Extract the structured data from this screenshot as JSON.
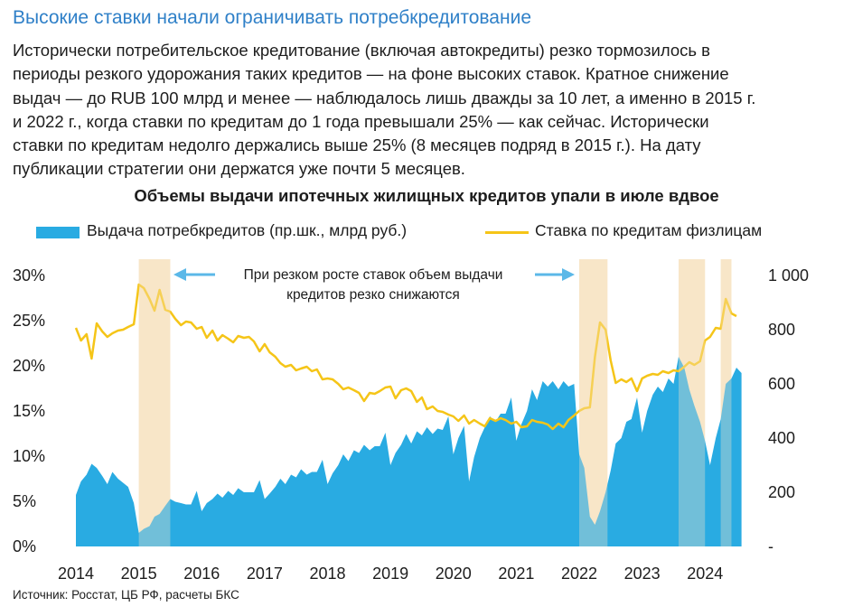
{
  "header": {
    "title": "Высокие ставки начали ограничивать потребкредитование",
    "paragraph_lines": [
      "Исторически потребительское кредитование (включая автокредиты) резко тормозилось в",
      "периоды резкого удорожания таких кредитов — на фоне высоких ставок. Кратное снижение",
      "выдач — до RUB 100 млрд и менее — наблюдалось лишь дважды за 10 лет, а именно в 2015 г.",
      "и 2022 г., когда ставки по кредитам до 1 года превышали 25% — как сейчас. Исторически",
      "ставки по кредитам недолго держались выше 25% (8 месяцев подряд в 2015 г.). На дату",
      "публикации стратегии они держатся уже почти 5 месяцев."
    ]
  },
  "chart_data": {
    "type": "area+line",
    "title": "Объемы выдачи ипотечных жилищных кредитов упали в июле вдвое",
    "legend": {
      "area_label": "Выдача потребкредитов (пр.шк., млрд руб.)",
      "line_label": "Ставка по кредитам физлицам",
      "placement": "top"
    },
    "annotation": {
      "line1": "При резком росте ставок объем выдачи",
      "line2": "кредитов резко снижаются"
    },
    "left_axis": {
      "ticks": [
        "30%",
        "25%",
        "20%",
        "15%",
        "10%",
        "5%",
        "0%"
      ],
      "range": [
        0,
        30
      ]
    },
    "right_axis": {
      "ticks": [
        "1 000",
        "800",
        "600",
        "400",
        "200",
        "-"
      ],
      "range": [
        0,
        1000
      ]
    },
    "x_axis": {
      "ticks": [
        "2014",
        "2015",
        "2016",
        "2017",
        "2018",
        "2019",
        "2020",
        "2021",
        "2022",
        "2023",
        "2024"
      ],
      "start": 2014.0,
      "end": 2024.6
    },
    "highlight_periods": [
      [
        2015.0,
        2015.5
      ],
      [
        2022.0,
        2022.45
      ],
      [
        2023.58,
        2024.0
      ],
      [
        2024.25,
        2024.42
      ]
    ],
    "colors": {
      "area": "#29ABE2",
      "line": "#F5C518",
      "highlight": "#F8E6C8",
      "arrow": "#5BB8E8"
    },
    "series": [
      {
        "name": "Выдача потребкредитов (пр.шк., млрд руб.)",
        "axis": "right",
        "points": [
          [
            2014.0,
            190
          ],
          [
            2014.08,
            240
          ],
          [
            2014.17,
            265
          ],
          [
            2014.25,
            305
          ],
          [
            2014.33,
            290
          ],
          [
            2014.42,
            260
          ],
          [
            2014.5,
            230
          ],
          [
            2014.58,
            275
          ],
          [
            2014.67,
            250
          ],
          [
            2014.75,
            235
          ],
          [
            2014.83,
            220
          ],
          [
            2014.92,
            160
          ],
          [
            2015.0,
            50
          ],
          [
            2015.08,
            65
          ],
          [
            2015.17,
            75
          ],
          [
            2015.25,
            110
          ],
          [
            2015.33,
            120
          ],
          [
            2015.42,
            150
          ],
          [
            2015.5,
            175
          ],
          [
            2015.58,
            165
          ],
          [
            2015.67,
            160
          ],
          [
            2015.75,
            155
          ],
          [
            2015.83,
            155
          ],
          [
            2015.92,
            205
          ],
          [
            2016.0,
            130
          ],
          [
            2016.08,
            160
          ],
          [
            2016.17,
            175
          ],
          [
            2016.25,
            195
          ],
          [
            2016.33,
            180
          ],
          [
            2016.42,
            205
          ],
          [
            2016.5,
            190
          ],
          [
            2016.58,
            215
          ],
          [
            2016.67,
            200
          ],
          [
            2016.75,
            200
          ],
          [
            2016.83,
            200
          ],
          [
            2016.92,
            245
          ],
          [
            2017.0,
            175
          ],
          [
            2017.08,
            195
          ],
          [
            2017.17,
            220
          ],
          [
            2017.25,
            250
          ],
          [
            2017.33,
            230
          ],
          [
            2017.42,
            265
          ],
          [
            2017.5,
            255
          ],
          [
            2017.58,
            285
          ],
          [
            2017.67,
            265
          ],
          [
            2017.75,
            275
          ],
          [
            2017.83,
            275
          ],
          [
            2017.92,
            320
          ],
          [
            2018.0,
            230
          ],
          [
            2018.08,
            270
          ],
          [
            2018.17,
            300
          ],
          [
            2018.25,
            340
          ],
          [
            2018.33,
            315
          ],
          [
            2018.42,
            355
          ],
          [
            2018.5,
            345
          ],
          [
            2018.58,
            375
          ],
          [
            2018.67,
            355
          ],
          [
            2018.75,
            370
          ],
          [
            2018.83,
            370
          ],
          [
            2018.92,
            420
          ],
          [
            2019.0,
            300
          ],
          [
            2019.08,
            345
          ],
          [
            2019.17,
            375
          ],
          [
            2019.25,
            415
          ],
          [
            2019.33,
            380
          ],
          [
            2019.42,
            425
          ],
          [
            2019.5,
            410
          ],
          [
            2019.58,
            440
          ],
          [
            2019.67,
            415
          ],
          [
            2019.75,
            435
          ],
          [
            2019.83,
            430
          ],
          [
            2019.92,
            480
          ],
          [
            2020.0,
            340
          ],
          [
            2020.08,
            400
          ],
          [
            2020.17,
            445
          ],
          [
            2020.25,
            240
          ],
          [
            2020.33,
            330
          ],
          [
            2020.42,
            400
          ],
          [
            2020.5,
            440
          ],
          [
            2020.58,
            480
          ],
          [
            2020.67,
            460
          ],
          [
            2020.75,
            490
          ],
          [
            2020.83,
            490
          ],
          [
            2020.92,
            550
          ],
          [
            2021.0,
            390
          ],
          [
            2021.08,
            450
          ],
          [
            2021.17,
            500
          ],
          [
            2021.25,
            580
          ],
          [
            2021.33,
            540
          ],
          [
            2021.42,
            610
          ],
          [
            2021.5,
            590
          ],
          [
            2021.58,
            610
          ],
          [
            2021.67,
            580
          ],
          [
            2021.75,
            610
          ],
          [
            2021.83,
            590
          ],
          [
            2021.92,
            600
          ],
          [
            2022.0,
            340
          ],
          [
            2022.08,
            290
          ],
          [
            2022.17,
            110
          ],
          [
            2022.25,
            80
          ],
          [
            2022.33,
            130
          ],
          [
            2022.42,
            200
          ],
          [
            2022.5,
            280
          ],
          [
            2022.58,
            380
          ],
          [
            2022.67,
            400
          ],
          [
            2022.75,
            460
          ],
          [
            2022.83,
            470
          ],
          [
            2022.92,
            550
          ],
          [
            2023.0,
            420
          ],
          [
            2023.08,
            500
          ],
          [
            2023.17,
            560
          ],
          [
            2023.25,
            590
          ],
          [
            2023.33,
            570
          ],
          [
            2023.42,
            620
          ],
          [
            2023.5,
            600
          ],
          [
            2023.58,
            700
          ],
          [
            2023.67,
            660
          ],
          [
            2023.75,
            580
          ],
          [
            2023.83,
            520
          ],
          [
            2023.92,
            460
          ],
          [
            2024.0,
            390
          ],
          [
            2024.08,
            300
          ],
          [
            2024.17,
            400
          ],
          [
            2024.25,
            470
          ],
          [
            2024.33,
            600
          ],
          [
            2024.42,
            620
          ],
          [
            2024.5,
            660
          ],
          [
            2024.58,
            640
          ]
        ]
      },
      {
        "name": "Ставка по кредитам физлицам",
        "axis": "left",
        "points": [
          [
            2014.0,
            24.2
          ],
          [
            2014.08,
            22.8
          ],
          [
            2014.17,
            23.5
          ],
          [
            2014.25,
            20.8
          ],
          [
            2014.33,
            24.7
          ],
          [
            2014.42,
            23.8
          ],
          [
            2014.5,
            23.2
          ],
          [
            2014.58,
            23.6
          ],
          [
            2014.67,
            23.9
          ],
          [
            2014.75,
            24.0
          ],
          [
            2014.83,
            24.3
          ],
          [
            2014.92,
            24.6
          ],
          [
            2015.0,
            29.0
          ],
          [
            2015.08,
            28.6
          ],
          [
            2015.17,
            27.4
          ],
          [
            2015.25,
            26.1
          ],
          [
            2015.33,
            28.4
          ],
          [
            2015.42,
            26.2
          ],
          [
            2015.5,
            26.0
          ],
          [
            2015.58,
            25.2
          ],
          [
            2015.67,
            24.5
          ],
          [
            2015.75,
            24.9
          ],
          [
            2015.83,
            24.8
          ],
          [
            2015.92,
            24.1
          ],
          [
            2016.0,
            24.3
          ],
          [
            2016.08,
            23.1
          ],
          [
            2016.17,
            23.9
          ],
          [
            2016.25,
            22.8
          ],
          [
            2016.33,
            23.4
          ],
          [
            2016.42,
            23.0
          ],
          [
            2016.5,
            22.6
          ],
          [
            2016.58,
            23.3
          ],
          [
            2016.67,
            23.1
          ],
          [
            2016.75,
            23.2
          ],
          [
            2016.83,
            22.7
          ],
          [
            2016.92,
            21.6
          ],
          [
            2017.0,
            22.4
          ],
          [
            2017.08,
            21.5
          ],
          [
            2017.17,
            21.0
          ],
          [
            2017.25,
            20.3
          ],
          [
            2017.33,
            19.9
          ],
          [
            2017.42,
            20.1
          ],
          [
            2017.5,
            19.5
          ],
          [
            2017.58,
            19.7
          ],
          [
            2017.67,
            19.9
          ],
          [
            2017.75,
            19.4
          ],
          [
            2017.83,
            19.6
          ],
          [
            2017.92,
            18.5
          ],
          [
            2018.0,
            18.6
          ],
          [
            2018.08,
            18.5
          ],
          [
            2018.17,
            18.0
          ],
          [
            2018.25,
            17.4
          ],
          [
            2018.33,
            17.6
          ],
          [
            2018.42,
            17.3
          ],
          [
            2018.5,
            17.0
          ],
          [
            2018.58,
            16.1
          ],
          [
            2018.67,
            17.0
          ],
          [
            2018.75,
            16.9
          ],
          [
            2018.83,
            17.2
          ],
          [
            2018.92,
            17.6
          ],
          [
            2019.0,
            17.7
          ],
          [
            2019.08,
            16.4
          ],
          [
            2019.17,
            17.3
          ],
          [
            2019.25,
            17.5
          ],
          [
            2019.33,
            17.2
          ],
          [
            2019.42,
            16.0
          ],
          [
            2019.5,
            16.5
          ],
          [
            2019.58,
            15.2
          ],
          [
            2019.67,
            15.5
          ],
          [
            2019.75,
            15.0
          ],
          [
            2019.83,
            14.9
          ],
          [
            2019.92,
            14.6
          ],
          [
            2020.0,
            14.4
          ],
          [
            2020.08,
            13.9
          ],
          [
            2020.17,
            14.5
          ],
          [
            2020.25,
            13.6
          ],
          [
            2020.33,
            14.0
          ],
          [
            2020.42,
            13.6
          ],
          [
            2020.5,
            13.3
          ],
          [
            2020.58,
            14.2
          ],
          [
            2020.67,
            13.9
          ],
          [
            2020.75,
            14.2
          ],
          [
            2020.83,
            14.0
          ],
          [
            2020.92,
            13.6
          ],
          [
            2021.0,
            13.8
          ],
          [
            2021.08,
            13.2
          ],
          [
            2021.17,
            13.3
          ],
          [
            2021.25,
            14.0
          ],
          [
            2021.33,
            13.8
          ],
          [
            2021.42,
            13.7
          ],
          [
            2021.5,
            13.5
          ],
          [
            2021.58,
            13.0
          ],
          [
            2021.67,
            13.6
          ],
          [
            2021.75,
            13.2
          ],
          [
            2021.83,
            14.0
          ],
          [
            2021.92,
            14.5
          ],
          [
            2022.0,
            15.0
          ],
          [
            2022.08,
            15.3
          ],
          [
            2022.17,
            15.4
          ],
          [
            2022.25,
            21.0
          ],
          [
            2022.33,
            24.8
          ],
          [
            2022.42,
            24.0
          ],
          [
            2022.5,
            20.6
          ],
          [
            2022.58,
            18.1
          ],
          [
            2022.67,
            18.5
          ],
          [
            2022.75,
            18.2
          ],
          [
            2022.83,
            18.6
          ],
          [
            2022.92,
            17.2
          ],
          [
            2023.0,
            18.6
          ],
          [
            2023.08,
            18.9
          ],
          [
            2023.17,
            19.1
          ],
          [
            2023.25,
            19.0
          ],
          [
            2023.33,
            19.4
          ],
          [
            2023.42,
            19.2
          ],
          [
            2023.5,
            19.5
          ],
          [
            2023.58,
            19.4
          ],
          [
            2023.67,
            19.9
          ],
          [
            2023.75,
            20.4
          ],
          [
            2023.83,
            20.1
          ],
          [
            2023.92,
            20.5
          ],
          [
            2024.0,
            22.8
          ],
          [
            2024.08,
            23.2
          ],
          [
            2024.17,
            24.2
          ],
          [
            2024.25,
            24.1
          ],
          [
            2024.33,
            27.4
          ],
          [
            2024.42,
            25.8
          ],
          [
            2024.5,
            25.5
          ]
        ]
      }
    ]
  },
  "footer": {
    "source": "Источник: Росстат, ЦБ РФ, расчеты БКС"
  }
}
